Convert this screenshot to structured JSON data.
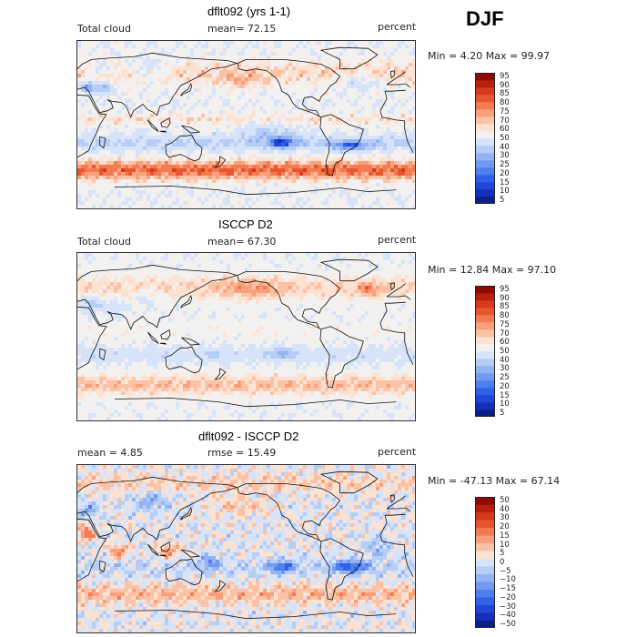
{
  "header": {
    "season": "DJF"
  },
  "palette_abs": [
    "#0a1f8a",
    "#1530b8",
    "#1f47d9",
    "#2f62e8",
    "#4e7fef",
    "#7199f0",
    "#94b3f2",
    "#b6cdf5",
    "#d6e3f8",
    "#f3f1f0",
    "#fde2d2",
    "#fbc2a6",
    "#f8a07c",
    "#f37b52",
    "#e8562f",
    "#d63a1d",
    "#b81f0f",
    "#8f0a05"
  ],
  "palette_diff": [
    "#0a1f8a",
    "#1530b8",
    "#1f47d9",
    "#2f62e8",
    "#4e7fef",
    "#7199f0",
    "#94b3f2",
    "#b6cdf5",
    "#d6e3f8",
    "#fde2d2",
    "#fbc2a6",
    "#f8a07c",
    "#f37b52",
    "#e8562f",
    "#d63a1d",
    "#b81f0f",
    "#8f0a05"
  ],
  "chart_data": [
    {
      "type": "heatmap",
      "title": "dflt092 (yrs 1-1)",
      "field_label": "Total cloud",
      "mean_text": "mean=  72.15",
      "units": "percent",
      "min_max_text": "Min =   4.20 Max =  99.97",
      "stats": {
        "mean": 72.15,
        "min": 4.2,
        "max": 99.97
      },
      "colorbar_levels": [
        "95",
        "90",
        "85",
        "80",
        "75",
        "70",
        "60",
        "50",
        "40",
        "30",
        "25",
        "20",
        "15",
        "10",
        "5"
      ]
    },
    {
      "type": "heatmap",
      "title": "ISCCP D2",
      "field_label": "Total cloud",
      "mean_text": "mean=  67.30",
      "units": "percent",
      "min_max_text": "Min =  12.84 Max =  97.10",
      "stats": {
        "mean": 67.3,
        "min": 12.84,
        "max": 97.1
      },
      "colorbar_levels": [
        "95",
        "90",
        "85",
        "80",
        "75",
        "70",
        "60",
        "50",
        "40",
        "30",
        "25",
        "20",
        "15",
        "10",
        "5"
      ]
    },
    {
      "type": "heatmap",
      "title": "dflt092 - ISCCP D2",
      "field_label": "",
      "mean_text": "mean =   4.85",
      "rmse_text": "rmse =  15.49",
      "units": "percent",
      "min_max_text": "Min = -47.13 Max =  67.14",
      "stats": {
        "mean": 4.85,
        "rmse": 15.49,
        "min": -47.13,
        "max": 67.14
      },
      "colorbar_levels": [
        "50",
        "40",
        "30",
        "20",
        "15",
        "10",
        "5",
        "0",
        "−5",
        "−10",
        "−15",
        "−20",
        "−30",
        "−40",
        "−50"
      ]
    }
  ]
}
